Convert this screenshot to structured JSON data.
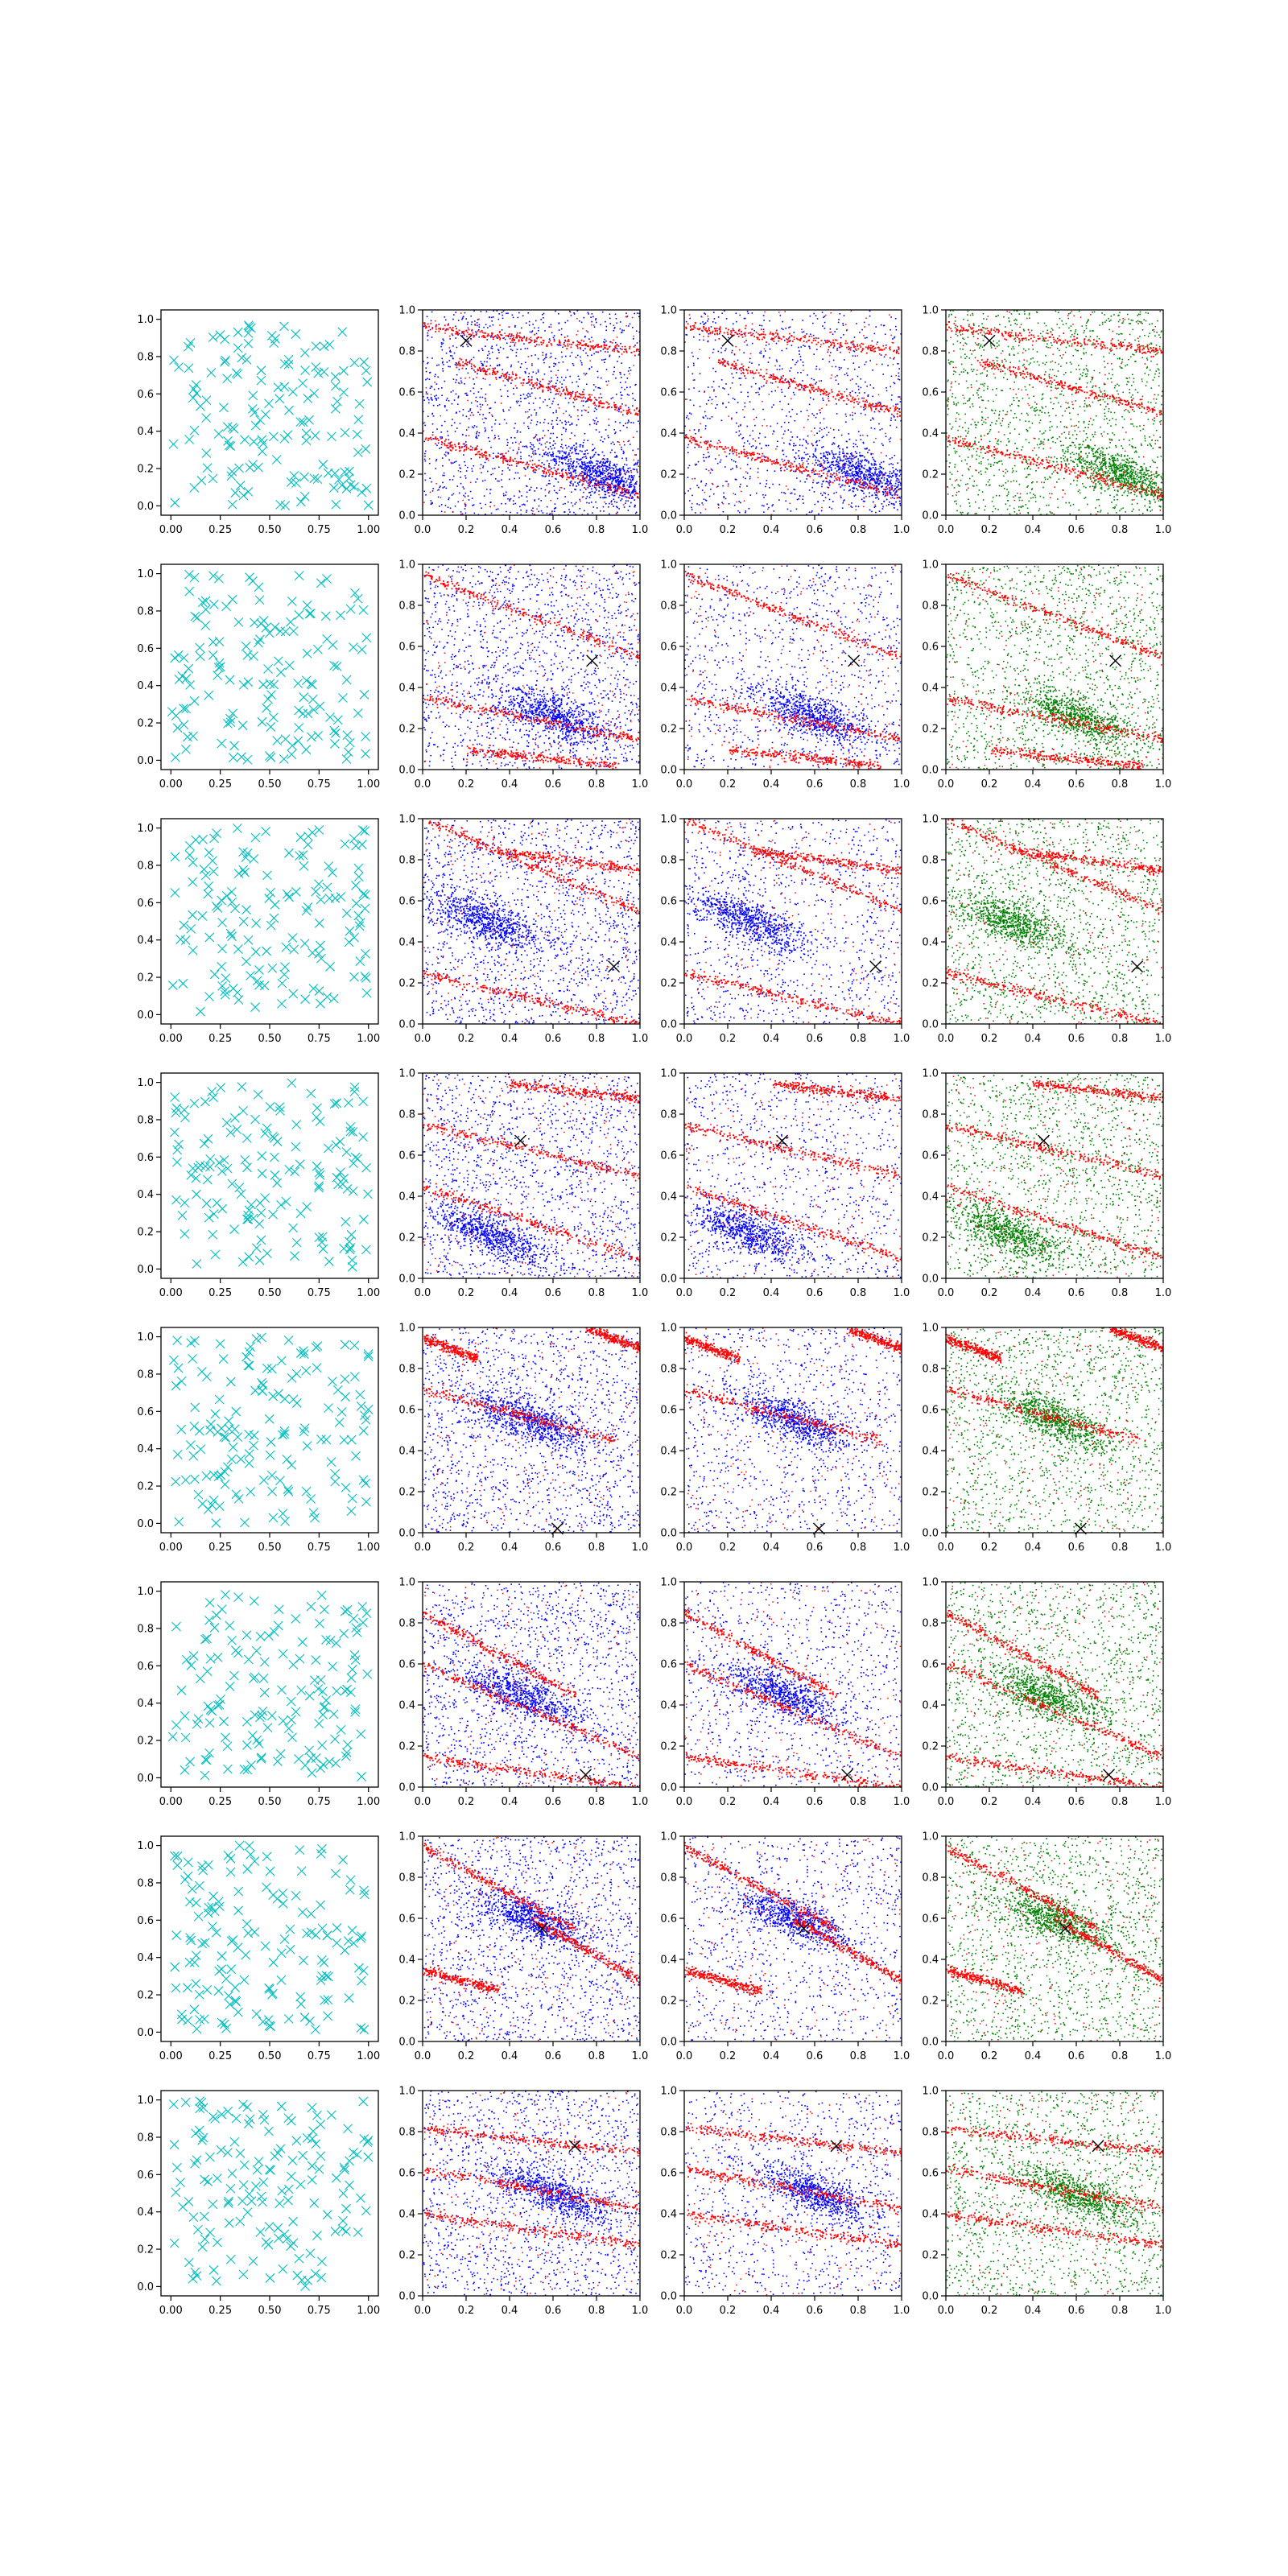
{
  "figure": {
    "rows": 8,
    "cols": 4,
    "background": "#ffffff"
  },
  "chart_data": {
    "type": "scatter",
    "layout": "grid-8x4",
    "colors": {
      "samples_cyan": "#00bfbf",
      "red": "#ff0000",
      "blue": "#0000ff",
      "green": "#008000",
      "marker_black": "#000000"
    },
    "axes": {
      "col0": {
        "xlim": [
          -0.05,
          1.05
        ],
        "ylim": [
          -0.05,
          1.05
        ],
        "xticks": [
          "0.00",
          "0.25",
          "0.50",
          "0.75",
          "1.00"
        ],
        "yticks": [
          "0.0",
          "0.2",
          "0.4",
          "0.6",
          "0.8",
          "1.0"
        ]
      },
      "col1to3": {
        "xlim": [
          0,
          1
        ],
        "ylim": [
          0,
          1
        ],
        "xticks": [
          "0.0",
          "0.2",
          "0.4",
          "0.6",
          "0.8",
          "1.0"
        ],
        "yticks": [
          "0.0",
          "0.2",
          "0.4",
          "0.6",
          "0.8",
          "1.0"
        ]
      }
    },
    "series_descriptions": [
      {
        "col": 0,
        "marker": "x",
        "color": "#00bfbf",
        "points_per_panel": 150,
        "distribution": "uniform"
      },
      {
        "col": 1,
        "markers": "dots",
        "colors": [
          "#0000ff",
          "#ff0000"
        ]
      },
      {
        "col": 2,
        "markers": "dots",
        "colors": [
          "#0000ff",
          "#ff0000"
        ]
      },
      {
        "col": 3,
        "markers": "dots",
        "colors": [
          "#008000",
          "#ff0000"
        ]
      }
    ],
    "rows": [
      {
        "marker_x": [
          0.2,
          0.85
        ],
        "blue_cluster": [
          0.82,
          0.2
        ],
        "red_bands": [
          [
            0.0,
            0.38,
            1.0,
            0.1
          ],
          [
            0.15,
            0.75,
            1.0,
            0.5
          ],
          [
            0.0,
            0.92,
            1.0,
            0.8
          ]
        ]
      },
      {
        "marker_x": [
          0.78,
          0.53
        ],
        "blue_cluster": [
          0.6,
          0.26
        ],
        "red_bands": [
          [
            0.2,
            0.1,
            0.9,
            0.02
          ],
          [
            0.0,
            0.95,
            1.0,
            0.55
          ],
          [
            0.0,
            0.35,
            1.0,
            0.15
          ]
        ]
      },
      {
        "marker_x": [
          0.88,
          0.28
        ],
        "blue_cluster": [
          0.3,
          0.5
        ],
        "red_bands": [
          [
            0.0,
            1.0,
            1.0,
            0.55
          ],
          [
            0.0,
            0.25,
            1.0,
            0.0
          ],
          [
            0.3,
            0.85,
            1.0,
            0.75
          ]
        ]
      },
      {
        "marker_x": [
          0.45,
          0.67
        ],
        "blue_cluster": [
          0.3,
          0.22
        ],
        "red_bands": [
          [
            0.0,
            0.75,
            1.0,
            0.5
          ],
          [
            0.0,
            0.45,
            1.0,
            0.1
          ],
          [
            0.4,
            0.95,
            1.0,
            0.88
          ]
        ]
      },
      {
        "marker_x": [
          0.62,
          0.02
        ],
        "blue_cluster": [
          0.5,
          0.55
        ],
        "red_bands": [
          [
            0.0,
            0.95,
            0.25,
            0.85
          ],
          [
            0.75,
            1.0,
            1.0,
            0.9
          ],
          [
            0.0,
            0.7,
            0.9,
            0.45
          ]
        ]
      },
      {
        "marker_x": [
          0.75,
          0.06
        ],
        "blue_cluster": [
          0.45,
          0.45
        ],
        "red_bands": [
          [
            0.0,
            0.85,
            0.7,
            0.45
          ],
          [
            0.0,
            0.6,
            1.0,
            0.15
          ],
          [
            0.0,
            0.15,
            1.0,
            0.0
          ]
        ]
      },
      {
        "marker_x": [
          0.55,
          0.55
        ],
        "blue_cluster": [
          0.5,
          0.6
        ],
        "red_bands": [
          [
            0.0,
            0.95,
            0.7,
            0.55
          ],
          [
            0.0,
            0.35,
            0.35,
            0.25
          ],
          [
            0.5,
            0.6,
            1.0,
            0.3
          ]
        ]
      },
      {
        "marker_x": [
          0.7,
          0.73
        ],
        "blue_cluster": [
          0.6,
          0.5
        ],
        "red_bands": [
          [
            0.0,
            0.82,
            1.0,
            0.7
          ],
          [
            0.0,
            0.62,
            1.0,
            0.43
          ],
          [
            0.0,
            0.4,
            1.0,
            0.25
          ]
        ]
      }
    ]
  }
}
